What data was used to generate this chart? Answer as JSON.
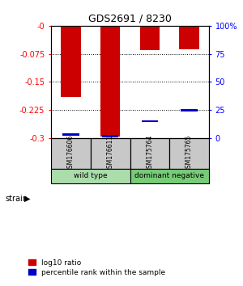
{
  "title": "GDS2691 / 8230",
  "samples": [
    "GSM176606",
    "GSM176611",
    "GSM175764",
    "GSM175765"
  ],
  "log10_ratio": [
    -0.19,
    -0.295,
    -0.065,
    -0.062
  ],
  "percentile_rank": [
    3.0,
    2.0,
    15.0,
    25.0
  ],
  "ylim_left": [
    -0.3,
    0.0
  ],
  "yticks_left": [
    0,
    -0.075,
    -0.15,
    -0.225,
    -0.3
  ],
  "ytick_labels_left": [
    "-0",
    "-0.075",
    "-0.15",
    "-0.225",
    "-0.3"
  ],
  "yticks_right_pct": [
    100,
    75,
    50,
    25,
    0
  ],
  "ytick_labels_right": [
    "100%",
    "75",
    "50",
    "25",
    "0"
  ],
  "bar_color_red": "#cc0000",
  "bar_color_blue": "#0000cc",
  "bar_width": 0.5,
  "background_color": "#ffffff",
  "sample_box_color": "#c8c8c8",
  "legend_red_label": "log10 ratio",
  "legend_blue_label": "percentile rank within the sample"
}
